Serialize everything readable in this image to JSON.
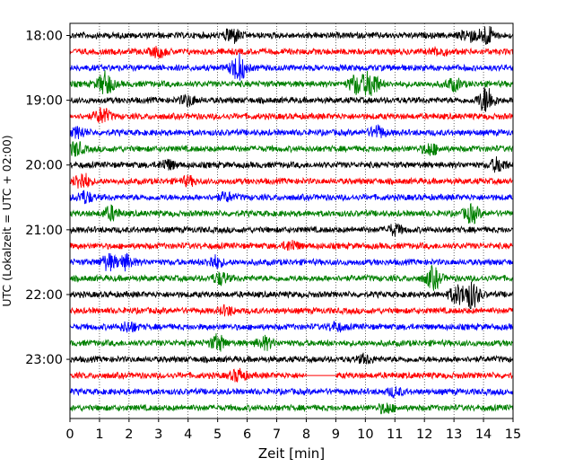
{
  "chart_data": {
    "type": "line",
    "title": "",
    "xlabel": "Zeit  [min]",
    "ylabel": "UTC (Lokalzeit = UTC + 02:00)",
    "xlim": [
      0,
      15
    ],
    "x_ticks": [
      "0",
      "1",
      "2",
      "3",
      "4",
      "5",
      "6",
      "7",
      "8",
      "9",
      "10",
      "11",
      "12",
      "13",
      "14",
      "15"
    ],
    "y_ticks": [
      {
        "label": "18:00",
        "trace": 0
      },
      {
        "label": "19:00",
        "trace": 4
      },
      {
        "label": "20:00",
        "trace": 8
      },
      {
        "label": "21:00",
        "trace": 12
      },
      {
        "label": "22:00",
        "trace": 16
      },
      {
        "label": "23:00",
        "trace": 20
      }
    ],
    "grid": "vertical dotted lines at each minute",
    "trace_interval_min": 15,
    "color_cycle": [
      "#000000",
      "#ff0000",
      "#0000ff",
      "#008000"
    ],
    "series": [
      {
        "start": "18:00",
        "bursts": [
          {
            "t": 5.5,
            "amp": 8
          },
          {
            "t": 14.1,
            "amp": 10
          },
          {
            "t": 13.5,
            "amp": 6
          }
        ]
      },
      {
        "start": "18:15",
        "bursts": [
          {
            "t": 3.0,
            "amp": 5
          },
          {
            "t": 12.5,
            "amp": 4
          }
        ]
      },
      {
        "start": "18:30",
        "bursts": [
          {
            "t": 5.7,
            "amp": 14
          }
        ]
      },
      {
        "start": "18:45",
        "bursts": [
          {
            "t": 1.2,
            "amp": 12
          },
          {
            "t": 9.7,
            "amp": 10
          },
          {
            "t": 10.2,
            "amp": 14
          },
          {
            "t": 13.0,
            "amp": 6
          }
        ]
      },
      {
        "start": "19:00",
        "bursts": [
          {
            "t": 14.1,
            "amp": 14
          },
          {
            "t": 4.0,
            "amp": 5
          }
        ]
      },
      {
        "start": "19:15",
        "bursts": [
          {
            "t": 1.1,
            "amp": 8
          }
        ]
      },
      {
        "start": "19:30",
        "bursts": [
          {
            "t": 0.3,
            "amp": 5
          },
          {
            "t": 10.4,
            "amp": 6
          }
        ]
      },
      {
        "start": "19:45",
        "bursts": [
          {
            "t": 0.2,
            "amp": 7
          },
          {
            "t": 12.2,
            "amp": 6
          }
        ]
      },
      {
        "start": "20:00",
        "bursts": [
          {
            "t": 14.5,
            "amp": 7
          },
          {
            "t": 3.3,
            "amp": 5
          }
        ]
      },
      {
        "start": "20:15",
        "bursts": [
          {
            "t": 0.4,
            "amp": 9
          },
          {
            "t": 4.0,
            "amp": 4
          }
        ]
      },
      {
        "start": "20:30",
        "bursts": [
          {
            "t": 0.5,
            "amp": 6
          },
          {
            "t": 5.3,
            "amp": 4
          }
        ]
      },
      {
        "start": "20:45",
        "bursts": [
          {
            "t": 1.4,
            "amp": 7
          },
          {
            "t": 13.6,
            "amp": 9
          }
        ]
      },
      {
        "start": "21:00",
        "bursts": [
          {
            "t": 11.0,
            "amp": 5
          }
        ]
      },
      {
        "start": "21:15",
        "bursts": [
          {
            "t": 7.5,
            "amp": 5
          }
        ]
      },
      {
        "start": "21:30",
        "bursts": [
          {
            "t": 1.3,
            "amp": 8
          },
          {
            "t": 1.9,
            "amp": 7
          },
          {
            "t": 4.9,
            "amp": 6
          }
        ]
      },
      {
        "start": "21:45",
        "bursts": [
          {
            "t": 12.3,
            "amp": 11
          },
          {
            "t": 5.1,
            "amp": 6
          }
        ]
      },
      {
        "start": "22:00",
        "bursts": [
          {
            "t": 13.6,
            "amp": 14
          },
          {
            "t": 13.1,
            "amp": 9
          }
        ]
      },
      {
        "start": "22:15",
        "bursts": [
          {
            "t": 5.3,
            "amp": 4
          }
        ]
      },
      {
        "start": "22:30",
        "bursts": [
          {
            "t": 2.0,
            "amp": 5
          },
          {
            "t": 9.0,
            "amp": 4
          }
        ]
      },
      {
        "start": "22:45",
        "bursts": [
          {
            "t": 5.0,
            "amp": 8
          },
          {
            "t": 6.6,
            "amp": 6
          }
        ]
      },
      {
        "start": "23:00",
        "bursts": [
          {
            "t": 10.0,
            "amp": 4
          }
        ]
      },
      {
        "start": "23:15",
        "bursts": [
          {
            "t": 5.7,
            "amp": 6
          }
        ],
        "flat": [
          8.0,
          9.0
        ]
      },
      {
        "start": "23:30",
        "bursts": [
          {
            "t": 11.0,
            "amp": 4
          }
        ]
      },
      {
        "start": "23:45",
        "bursts": [
          {
            "t": 10.7,
            "amp": 5
          }
        ]
      }
    ]
  }
}
